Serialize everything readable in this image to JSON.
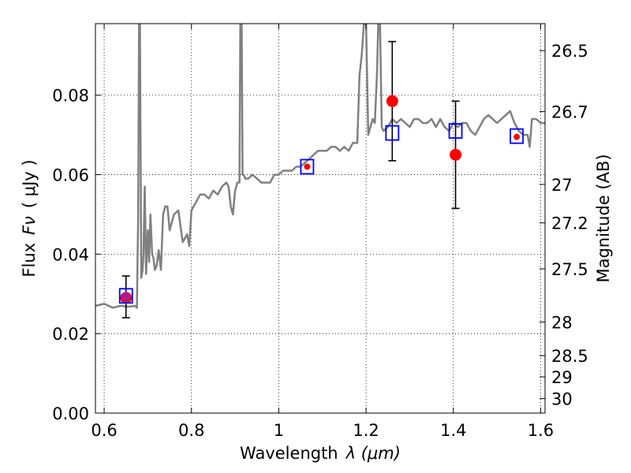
{
  "chart_data": {
    "type": "line",
    "xlabel_text": "Wavelength",
    "xlabel_symbol": "λ (μm)",
    "ylabel_text": "Flux",
    "ylabel_symbol": "Fν",
    "ylabel_unit": "( μJy )",
    "y2label": "Magnitude (AB)",
    "xlim": [
      0.58,
      1.61
    ],
    "ylim": [
      0.0,
      0.098
    ],
    "grid": true,
    "x_ticks": [
      {
        "value": 0.6,
        "label": "0.6"
      },
      {
        "value": 0.8,
        "label": "0.8"
      },
      {
        "value": 1.0,
        "label": "1"
      },
      {
        "value": 1.2,
        "label": "1.2"
      },
      {
        "value": 1.4,
        "label": "1.4"
      },
      {
        "value": 1.6,
        "label": "1.6"
      }
    ],
    "y_ticks": [
      {
        "value": 0.0,
        "label": "0.00"
      },
      {
        "value": 0.02,
        "label": "0.02"
      },
      {
        "value": 0.04,
        "label": "0.04"
      },
      {
        "value": 0.06,
        "label": "0.06"
      },
      {
        "value": 0.08,
        "label": "0.08"
      }
    ],
    "y2_ticks": [
      {
        "value": 26.5,
        "label": "26.5"
      },
      {
        "value": 26.7,
        "label": "26.7"
      },
      {
        "value": 27.0,
        "label": "27"
      },
      {
        "value": 27.2,
        "label": "27.2"
      },
      {
        "value": 27.5,
        "label": "27.5"
      },
      {
        "value": 28.0,
        "label": "28"
      },
      {
        "value": 28.5,
        "label": "28.5"
      },
      {
        "value": 29.0,
        "label": "29"
      },
      {
        "value": 30.0,
        "label": "30"
      }
    ],
    "series": [
      {
        "kind": "model_spectrum",
        "color": "#808080",
        "x": [
          0.58,
          0.6,
          0.61,
          0.62,
          0.63,
          0.64,
          0.65,
          0.66,
          0.67,
          0.675,
          0.678,
          0.68,
          0.682,
          0.685,
          0.688,
          0.69,
          0.693,
          0.696,
          0.7,
          0.703,
          0.706,
          0.71,
          0.713,
          0.716,
          0.72,
          0.725,
          0.73,
          0.735,
          0.74,
          0.745,
          0.75,
          0.76,
          0.77,
          0.78,
          0.79,
          0.795,
          0.8,
          0.81,
          0.82,
          0.83,
          0.84,
          0.85,
          0.86,
          0.87,
          0.88,
          0.885,
          0.89,
          0.895,
          0.9,
          0.905,
          0.91,
          0.912,
          0.915,
          0.917,
          0.92,
          0.923,
          0.93,
          0.94,
          0.95,
          0.96,
          0.97,
          0.98,
          0.99,
          1.0,
          1.01,
          1.02,
          1.03,
          1.04,
          1.05,
          1.06,
          1.07,
          1.08,
          1.09,
          1.1,
          1.11,
          1.12,
          1.13,
          1.14,
          1.15,
          1.16,
          1.17,
          1.18,
          1.185,
          1.19,
          1.195,
          1.2,
          1.205,
          1.21,
          1.215,
          1.22,
          1.225,
          1.228,
          1.232,
          1.236,
          1.24,
          1.25,
          1.26,
          1.27,
          1.28,
          1.29,
          1.3,
          1.31,
          1.32,
          1.33,
          1.34,
          1.35,
          1.36,
          1.37,
          1.38,
          1.39,
          1.4,
          1.41,
          1.42,
          1.43,
          1.44,
          1.45,
          1.46,
          1.47,
          1.48,
          1.49,
          1.5,
          1.51,
          1.52,
          1.53,
          1.54,
          1.55,
          1.56,
          1.57,
          1.575,
          1.58,
          1.59,
          1.6,
          1.61
        ],
        "y": [
          0.027,
          0.0275,
          0.027,
          0.0265,
          0.0268,
          0.027,
          0.0268,
          0.0268,
          0.027,
          0.0265,
          0.05,
          0.098,
          0.098,
          0.034,
          0.036,
          0.04,
          0.057,
          0.035,
          0.046,
          0.038,
          0.05,
          0.04,
          0.039,
          0.036,
          0.037,
          0.041,
          0.036,
          0.05,
          0.052,
          0.052,
          0.046,
          0.05,
          0.051,
          0.043,
          0.045,
          0.042,
          0.051,
          0.053,
          0.055,
          0.055,
          0.054,
          0.056,
          0.055,
          0.057,
          0.058,
          0.057,
          0.052,
          0.05,
          0.056,
          0.058,
          0.058,
          0.098,
          0.098,
          0.06,
          0.06,
          0.059,
          0.059,
          0.06,
          0.059,
          0.058,
          0.058,
          0.058,
          0.06,
          0.06,
          0.061,
          0.061,
          0.061,
          0.062,
          0.062,
          0.063,
          0.064,
          0.065,
          0.066,
          0.066,
          0.066,
          0.067,
          0.067,
          0.066,
          0.067,
          0.066,
          0.068,
          0.068,
          0.085,
          0.09,
          0.098,
          0.098,
          0.07,
          0.072,
          0.074,
          0.073,
          0.085,
          0.098,
          0.098,
          0.072,
          0.071,
          0.072,
          0.074,
          0.073,
          0.074,
          0.073,
          0.072,
          0.074,
          0.074,
          0.073,
          0.073,
          0.074,
          0.072,
          0.074,
          0.072,
          0.071,
          0.073,
          0.072,
          0.073,
          0.073,
          0.071,
          0.07,
          0.072,
          0.074,
          0.075,
          0.074,
          0.073,
          0.074,
          0.075,
          0.076,
          0.073,
          0.071,
          0.07,
          0.07,
          0.067,
          0.074,
          0.074,
          0.073,
          0.073
        ]
      },
      {
        "kind": "model_photometry",
        "marker": "open-square",
        "color": "#0000ff",
        "x": [
          0.65,
          1.065,
          1.26,
          1.405,
          1.545
        ],
        "y": [
          0.0295,
          0.062,
          0.0705,
          0.071,
          0.0697
        ]
      },
      {
        "kind": "observed_flux",
        "marker": "filled-circle",
        "color": "#ff0000",
        "x": [
          0.65,
          1.065,
          1.26,
          1.405,
          1.545
        ],
        "y": [
          0.029,
          0.062,
          0.0785,
          0.065,
          0.0695
        ],
        "yerr_low": [
          0.024,
          null,
          0.0635,
          0.0515,
          null
        ],
        "yerr_high": [
          0.0345,
          null,
          0.0935,
          0.0785,
          null
        ]
      }
    ]
  }
}
